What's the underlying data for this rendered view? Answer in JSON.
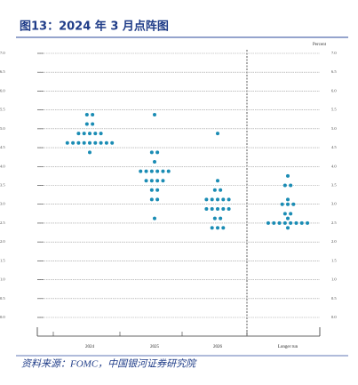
{
  "chart_data": {
    "type": "dot",
    "title": "图13：2024 年 3 月点阵图",
    "y_axis_label": "Percent",
    "source": "资料来源：FOMC，中国银河证券研究院",
    "categories": [
      "2024",
      "2025",
      "2026",
      "Longer run"
    ],
    "dots": [
      [
        {
          "value": 5.375,
          "count": 2
        },
        {
          "value": 5.125,
          "count": 2
        },
        {
          "value": 4.875,
          "count": 5
        },
        {
          "value": 4.625,
          "count": 9
        },
        {
          "value": 4.375,
          "count": 1
        }
      ],
      [
        {
          "value": 5.375,
          "count": 1
        },
        {
          "value": 4.375,
          "count": 2
        },
        {
          "value": 4.125,
          "count": 1
        },
        {
          "value": 3.875,
          "count": 6
        },
        {
          "value": 3.625,
          "count": 4
        },
        {
          "value": 3.375,
          "count": 2
        },
        {
          "value": 3.125,
          "count": 2
        },
        {
          "value": 2.625,
          "count": 1
        }
      ],
      [
        {
          "value": 4.875,
          "count": 1
        },
        {
          "value": 3.625,
          "count": 1
        },
        {
          "value": 3.375,
          "count": 2
        },
        {
          "value": 3.125,
          "count": 5
        },
        {
          "value": 2.875,
          "count": 5
        },
        {
          "value": 2.625,
          "count": 2
        },
        {
          "value": 2.375,
          "count": 3
        }
      ],
      [
        {
          "value": 3.75,
          "count": 1
        },
        {
          "value": 3.5,
          "count": 2
        },
        {
          "value": 3.125,
          "count": 1
        },
        {
          "value": 3.0,
          "count": 3
        },
        {
          "value": 2.75,
          "count": 2
        },
        {
          "value": 2.625,
          "count": 1
        },
        {
          "value": 2.5,
          "count": 8
        },
        {
          "value": 2.375,
          "count": 1
        }
      ]
    ],
    "color": "#1a8cb4",
    "ylim": [
      0,
      7
    ],
    "yticks": [
      {
        "value": 0,
        "label": "0.0"
      },
      0.5,
      {
        "value": 1,
        "label": "1.0"
      },
      1.5,
      {
        "value": 2,
        "label": "2.0"
      },
      2.5,
      {
        "value": 3,
        "label": "3.0"
      },
      3.5,
      {
        "value": 4,
        "label": "4.0"
      },
      4.5,
      {
        "value": 5,
        "label": "5.0"
      },
      5.5,
      {
        "value": 6,
        "label": "6.0"
      },
      6.5,
      {
        "value": 7,
        "label": "7.0"
      }
    ],
    "grid": true
  }
}
